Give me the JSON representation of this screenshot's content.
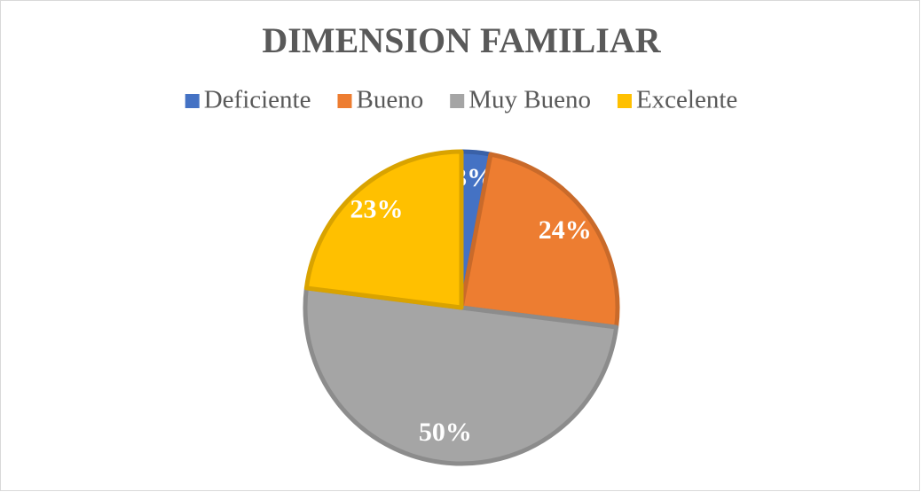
{
  "chart_data": {
    "type": "pie",
    "title": "DIMENSION FAMILIAR",
    "categories": [
      "Deficiente",
      "Bueno",
      "Muy Bueno",
      "Excelente"
    ],
    "values": [
      3,
      24,
      50,
      23
    ],
    "value_labels": [
      "3%",
      "24%",
      "50%",
      "23%"
    ],
    "colors": [
      "#4472c4",
      "#ed7d31",
      "#a5a5a5",
      "#ffc000"
    ],
    "legend": "top"
  }
}
